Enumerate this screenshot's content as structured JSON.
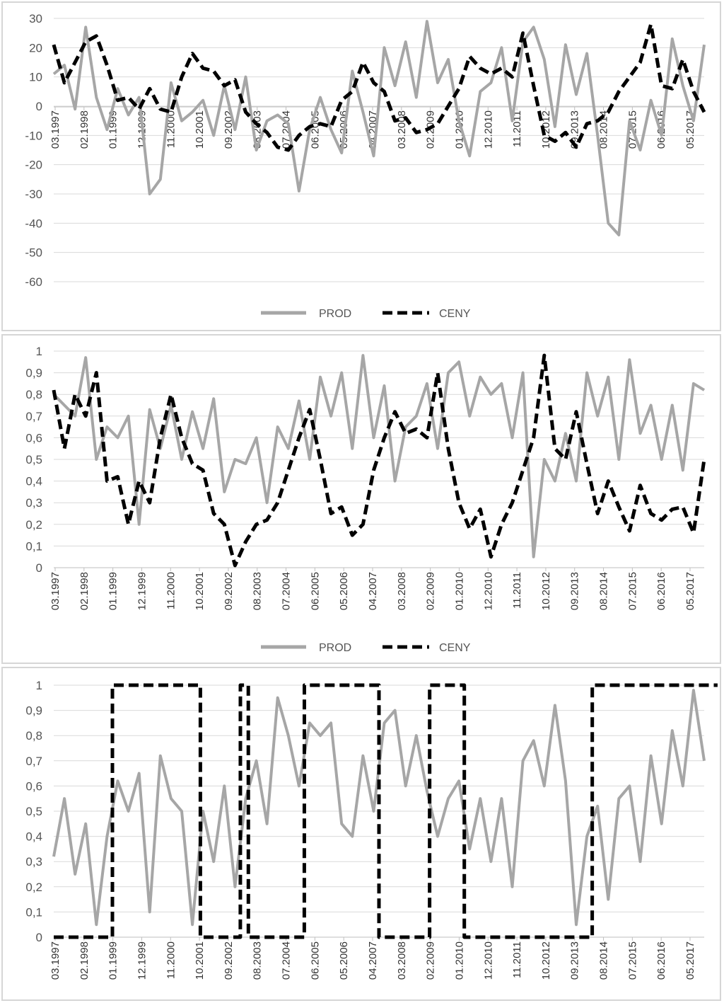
{
  "chart_data": [
    {
      "type": "line",
      "panel": "top",
      "ylim": [
        -60,
        30
      ],
      "yticks": [
        30,
        20,
        10,
        0,
        -10,
        -20,
        -30,
        -40,
        -50,
        -60
      ],
      "grid": true,
      "legend": "bottom-center",
      "x_start": "03.1997",
      "x_end": "08.2017",
      "categories_labeled": [
        "03.1997",
        "02.1998",
        "01.1999",
        "12.1999",
        "11.2000",
        "10.2001",
        "09.2002",
        "08.2003",
        "07.2004",
        "06.2005",
        "05.2006",
        "04.2007",
        "03.2008",
        "02.2009",
        "01.2010",
        "12.2010",
        "11.2011",
        "10.2012",
        "09.2013",
        "08.2014",
        "07.2015",
        "06.2016",
        "05.2017"
      ],
      "series": [
        {
          "name": "PROD",
          "style": "solid",
          "color": "#a6a6a6",
          "x": [
            0,
            4,
            8,
            12,
            16,
            20,
            24,
            28,
            32,
            36,
            40,
            44,
            48,
            52,
            56,
            60,
            64,
            68,
            72,
            76,
            80,
            84,
            88,
            92,
            96,
            100,
            104,
            108,
            112,
            116,
            120,
            124,
            128,
            132,
            136,
            140,
            144,
            148,
            152,
            156,
            160,
            164,
            168,
            172,
            176,
            180,
            184,
            188,
            192,
            196,
            200,
            204,
            208,
            212,
            216,
            220,
            224,
            228,
            232,
            236,
            240,
            244
          ],
          "values": [
            11,
            14,
            -1,
            27,
            3,
            -8,
            6,
            -3,
            3,
            -30,
            -25,
            8,
            -5,
            -2,
            2,
            -10,
            7,
            -8,
            10,
            -15,
            -5,
            -3,
            -6,
            -29,
            -8,
            3,
            -8,
            -16,
            12,
            -2,
            -17,
            20,
            7,
            22,
            3,
            29,
            8,
            16,
            -5,
            -17,
            5,
            8,
            20,
            -5,
            22,
            27,
            16,
            -7,
            21,
            4,
            18,
            -10,
            -40,
            -44,
            -5,
            -15,
            2,
            -10,
            23,
            7,
            -5,
            21
          ]
        },
        {
          "name": "CENY",
          "style": "dashed",
          "color": "#000000",
          "x": [
            0,
            4,
            8,
            12,
            16,
            20,
            24,
            28,
            32,
            36,
            40,
            44,
            48,
            52,
            56,
            60,
            64,
            68,
            72,
            76,
            80,
            84,
            88,
            92,
            96,
            100,
            104,
            108,
            112,
            116,
            120,
            124,
            128,
            132,
            136,
            140,
            144,
            148,
            152,
            156,
            160,
            164,
            168,
            172,
            176,
            180,
            184,
            188,
            192,
            196,
            200,
            204,
            208,
            212,
            216,
            220,
            224,
            228,
            232,
            236,
            240,
            244
          ],
          "values": [
            21,
            8,
            15,
            22,
            24,
            14,
            2,
            3,
            -1,
            6,
            -1,
            -2,
            10,
            18,
            13,
            12,
            7,
            9,
            -2,
            -6,
            -9,
            -14,
            -15,
            -10,
            -7,
            -6,
            -7,
            2,
            5,
            15,
            8,
            5,
            -5,
            -4,
            -9,
            -8,
            -6,
            0,
            6,
            17,
            13,
            11,
            13,
            10,
            25,
            7,
            -10,
            -12,
            -9,
            -14,
            -6,
            -5,
            -2,
            5,
            10,
            15,
            28,
            7,
            6,
            16,
            5,
            -2
          ]
        }
      ]
    },
    {
      "type": "line",
      "panel": "middle",
      "ylim": [
        0,
        1
      ],
      "yticks": [
        "1",
        "0,9",
        "0,8",
        "0,7",
        "0,6",
        "0,5",
        "0,4",
        "0,3",
        "0,2",
        "0,1",
        "0"
      ],
      "grid": true,
      "legend": "bottom-center",
      "x_start": "03.1997",
      "x_end": "08.2017",
      "categories_labeled": [
        "03.1997",
        "02.1998",
        "01.1999",
        "12.1999",
        "11.2000",
        "10.2001",
        "09.2002",
        "08.2003",
        "07.2004",
        "06.2005",
        "05.2006",
        "04.2007",
        "03.2008",
        "02.2009",
        "01.2010",
        "12.2010",
        "11.2011",
        "10.2012",
        "09.2013",
        "08.2014",
        "07.2015",
        "06.2016",
        "05.2017"
      ],
      "series": [
        {
          "name": "PROD",
          "style": "solid",
          "color": "#a6a6a6",
          "x": [
            0,
            4,
            8,
            12,
            16,
            20,
            24,
            28,
            32,
            36,
            40,
            44,
            48,
            52,
            56,
            60,
            64,
            68,
            72,
            76,
            80,
            84,
            88,
            92,
            96,
            100,
            104,
            108,
            112,
            116,
            120,
            124,
            128,
            132,
            136,
            140,
            144,
            148,
            152,
            156,
            160,
            164,
            168,
            172,
            176,
            180,
            184,
            188,
            192,
            196,
            200,
            204,
            208,
            212,
            216,
            220,
            224,
            228,
            232,
            236,
            240,
            244
          ],
          "values": [
            0.8,
            0.75,
            0.7,
            0.97,
            0.5,
            0.65,
            0.6,
            0.7,
            0.2,
            0.73,
            0.55,
            0.75,
            0.5,
            0.72,
            0.55,
            0.78,
            0.35,
            0.5,
            0.48,
            0.6,
            0.3,
            0.65,
            0.55,
            0.77,
            0.5,
            0.88,
            0.7,
            0.9,
            0.55,
            0.98,
            0.6,
            0.84,
            0.4,
            0.65,
            0.7,
            0.85,
            0.55,
            0.9,
            0.95,
            0.7,
            0.88,
            0.8,
            0.85,
            0.6,
            0.9,
            0.05,
            0.5,
            0.4,
            0.62,
            0.4,
            0.9,
            0.7,
            0.88,
            0.5,
            0.96,
            0.62,
            0.75,
            0.5,
            0.75,
            0.45,
            0.85,
            0.82
          ]
        },
        {
          "name": "CENY",
          "style": "dashed",
          "color": "#000000",
          "x": [
            0,
            4,
            8,
            12,
            16,
            20,
            24,
            28,
            32,
            36,
            40,
            44,
            48,
            52,
            56,
            60,
            64,
            68,
            72,
            76,
            80,
            84,
            88,
            92,
            96,
            100,
            104,
            108,
            112,
            116,
            120,
            124,
            128,
            132,
            136,
            140,
            144,
            148,
            152,
            156,
            160,
            164,
            168,
            172,
            176,
            180,
            184,
            188,
            192,
            196,
            200,
            204,
            208,
            212,
            216,
            220,
            224,
            228,
            232,
            236,
            240,
            244
          ],
          "values": [
            0.82,
            0.55,
            0.8,
            0.7,
            0.9,
            0.4,
            0.42,
            0.2,
            0.4,
            0.3,
            0.6,
            0.8,
            0.6,
            0.48,
            0.45,
            0.25,
            0.2,
            0.01,
            0.12,
            0.2,
            0.22,
            0.3,
            0.45,
            0.6,
            0.73,
            0.5,
            0.25,
            0.28,
            0.15,
            0.2,
            0.45,
            0.6,
            0.72,
            0.62,
            0.64,
            0.6,
            0.9,
            0.55,
            0.3,
            0.18,
            0.27,
            0.05,
            0.2,
            0.3,
            0.45,
            0.6,
            0.98,
            0.55,
            0.5,
            0.72,
            0.48,
            0.25,
            0.4,
            0.28,
            0.17,
            0.38,
            0.25,
            0.22,
            0.27,
            0.28,
            0.16,
            0.5
          ]
        }
      ]
    },
    {
      "type": "line",
      "panel": "bottom",
      "ylim": [
        0,
        1
      ],
      "yticks": [
        "1",
        "0,9",
        "0,8",
        "0,7",
        "0,6",
        "0,5",
        "0,4",
        "0,3",
        "0,2",
        "0,1",
        "0"
      ],
      "grid": true,
      "x_start": "03.1997",
      "x_end": "08.2017",
      "categories_labeled": [
        "03.1997",
        "02.1998",
        "01.1999",
        "12.1999",
        "11.2000",
        "10.2001",
        "09.2002",
        "08.2003",
        "07.2004",
        "06.2005",
        "05.2006",
        "04.2007",
        "03.2008",
        "02.2009",
        "01.2010",
        "12.2010",
        "11.2011",
        "10.2012",
        "09.2013",
        "08.2014",
        "07.2015",
        "06.2016",
        "05.2017"
      ],
      "series": [
        {
          "name": "",
          "style": "solid",
          "color": "#a6a6a6",
          "x": [
            0,
            4,
            8,
            12,
            16,
            20,
            24,
            28,
            32,
            36,
            40,
            44,
            48,
            52,
            56,
            60,
            64,
            68,
            72,
            76,
            80,
            84,
            88,
            92,
            96,
            100,
            104,
            108,
            112,
            116,
            120,
            124,
            128,
            132,
            136,
            140,
            144,
            148,
            152,
            156,
            160,
            164,
            168,
            172,
            176,
            180,
            184,
            188,
            192,
            196,
            200,
            204,
            208,
            212,
            216,
            220,
            224,
            228,
            232,
            236,
            240,
            244
          ],
          "values": [
            0.32,
            0.55,
            0.25,
            0.45,
            0.05,
            0.4,
            0.62,
            0.5,
            0.65,
            0.1,
            0.72,
            0.55,
            0.5,
            0.05,
            0.5,
            0.3,
            0.6,
            0.2,
            0.55,
            0.7,
            0.45,
            0.95,
            0.8,
            0.6,
            0.85,
            0.8,
            0.85,
            0.45,
            0.4,
            0.72,
            0.5,
            0.85,
            0.9,
            0.6,
            0.8,
            0.58,
            0.4,
            0.55,
            0.62,
            0.35,
            0.55,
            0.3,
            0.55,
            0.2,
            0.7,
            0.78,
            0.6,
            0.92,
            0.62,
            0.05,
            0.4,
            0.52,
            0.15,
            0.55,
            0.6,
            0.3,
            0.72,
            0.45,
            0.82,
            0.6,
            0.98,
            0.7
          ]
        },
        {
          "name": "",
          "style": "dashed",
          "color": "#000000",
          "x": [
            0,
            22,
            22.01,
            55,
            55.01,
            70,
            70.01,
            73,
            73.01,
            94,
            94.01,
            122,
            122.01,
            141,
            141.01,
            154,
            154.01,
            202,
            202.01,
            249
          ],
          "values": [
            0,
            0,
            1,
            1,
            0,
            0,
            1,
            1,
            0,
            0,
            1,
            1,
            0,
            0,
            1,
            1,
            0,
            0,
            1,
            1
          ]
        }
      ]
    }
  ]
}
